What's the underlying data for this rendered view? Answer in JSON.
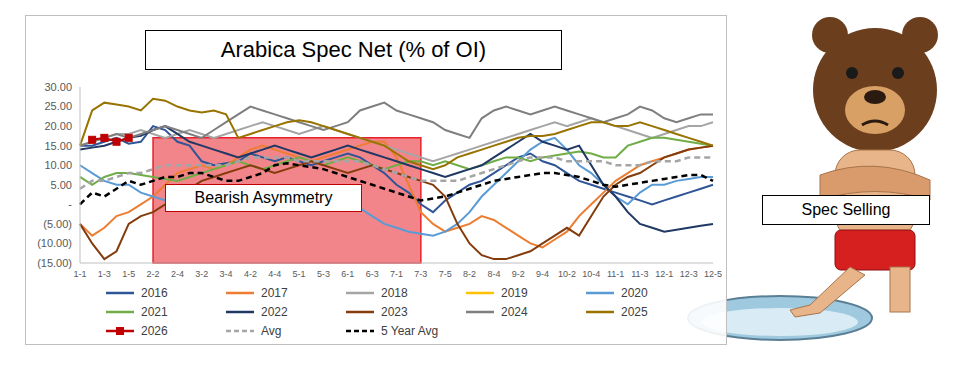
{
  "chart_data": {
    "type": "line",
    "title": "Arabica Spec Net (% of OI)",
    "categories": [
      "1-1",
      null,
      "1-3",
      null,
      "1-5",
      null,
      "2-2",
      null,
      "2-4",
      null,
      "3-2",
      null,
      "3-4",
      null,
      "4-2",
      null,
      "4-4",
      null,
      "5-1",
      null,
      "5-3",
      null,
      "6-1",
      null,
      "6-3",
      null,
      "7-1",
      null,
      "7-3",
      null,
      "7-5",
      null,
      "8-2",
      null,
      "8-4",
      null,
      "9-2",
      null,
      "9-4",
      null,
      "10-2",
      null,
      "10-4",
      null,
      "11-1",
      null,
      "11-3",
      null,
      "12-1",
      null,
      "12-3",
      null,
      "12-5"
    ],
    "ylim": [
      -15,
      30
    ],
    "yticks": [
      {
        "value": -15,
        "label": "(15.00)"
      },
      {
        "value": -10,
        "label": "(10.00)"
      },
      {
        "value": -5,
        "label": "(5.00)"
      },
      {
        "value": 0,
        "label": "-"
      },
      {
        "value": 5,
        "label": "5.00"
      },
      {
        "value": 10,
        "label": "10.00"
      },
      {
        "value": 15,
        "label": "15.00"
      },
      {
        "value": 20,
        "label": "20.00"
      },
      {
        "value": 25,
        "label": "25.00"
      },
      {
        "value": 30,
        "label": "30.00"
      }
    ],
    "grid": false,
    "series": [
      {
        "name": "2016",
        "color": "#2f5597",
        "values": [
          15,
          15,
          16,
          17,
          15.5,
          16,
          20,
          19,
          16,
          15,
          11,
          10,
          10.5,
          11,
          13,
          12,
          11,
          12,
          11,
          10,
          11,
          12,
          13,
          12,
          10,
          8,
          5,
          3,
          0,
          -2,
          1,
          3,
          5,
          6,
          8,
          10,
          12,
          13,
          11,
          10,
          8,
          6,
          5,
          4,
          3,
          2,
          1,
          0,
          1,
          2,
          3,
          4,
          5
        ]
      },
      {
        "name": "2017",
        "color": "#ed7d31",
        "values": [
          -5,
          -8,
          -6,
          -3,
          -2,
          0,
          2,
          5,
          8,
          9,
          10,
          9,
          10,
          12,
          14,
          15,
          14,
          13,
          12,
          11,
          12,
          13,
          14,
          15,
          16,
          16,
          12,
          5,
          -2,
          -5,
          -7,
          -6,
          -5,
          -3,
          -4,
          -6,
          -8,
          -10,
          -11,
          -9,
          -7,
          -3,
          0,
          3,
          6,
          8,
          10,
          11,
          12,
          13,
          14,
          14.5,
          15
        ]
      },
      {
        "name": "2018",
        "color": "#a5a5a5",
        "values": [
          15,
          16,
          17,
          18,
          18,
          19,
          18,
          17,
          18,
          19,
          18,
          17,
          18,
          19,
          20,
          21,
          20,
          19,
          18,
          19,
          20,
          19,
          18,
          17,
          16,
          15,
          14,
          13,
          12,
          11,
          12,
          13,
          14,
          15,
          16,
          17,
          18,
          19,
          20,
          21,
          20,
          21,
          22,
          21,
          20,
          19,
          18,
          17,
          18,
          19,
          20,
          20,
          21
        ]
      },
      {
        "name": "2019",
        "color": "#ffc000",
        "values": [
          null,
          null,
          null,
          null,
          null,
          null,
          null,
          null,
          null,
          null,
          null,
          null,
          null,
          null,
          null,
          null,
          null,
          null,
          null,
          null,
          null,
          null,
          null,
          null,
          null,
          null,
          null,
          null,
          null,
          null,
          null,
          null,
          null,
          null,
          null,
          null,
          null,
          null,
          null,
          null,
          null,
          null,
          null,
          null,
          null,
          null,
          null,
          null,
          null,
          null,
          null,
          null,
          null
        ]
      },
      {
        "name": "2020",
        "color": "#5b9bd5",
        "values": [
          10,
          8,
          6,
          5,
          5,
          3,
          2,
          1,
          0,
          -1,
          0,
          1,
          2,
          1,
          0,
          -1,
          0,
          1,
          2,
          3,
          2,
          1,
          0,
          -1,
          -3,
          -5,
          -6,
          -7,
          -7.5,
          -8,
          -7,
          -5,
          -2,
          2,
          5,
          8,
          11,
          14,
          16,
          17,
          14,
          10,
          8,
          5,
          2,
          0,
          3,
          5,
          5,
          6,
          6.5,
          7,
          7
        ]
      },
      {
        "name": "2021",
        "color": "#70ad47",
        "values": [
          7,
          5,
          7,
          8,
          8,
          7.5,
          7,
          6.5,
          6,
          7,
          8,
          9,
          10,
          11,
          10,
          9,
          10,
          11,
          12,
          11,
          10,
          11,
          12,
          11,
          10,
          9,
          10,
          11,
          11,
          10,
          11,
          10,
          9,
          10,
          11,
          12,
          12,
          11,
          12,
          12.5,
          13,
          13.5,
          13,
          12,
          12,
          15,
          16,
          17,
          17,
          16.5,
          16,
          15.5,
          15
        ]
      },
      {
        "name": "2022",
        "color": "#1f3864",
        "values": [
          14,
          14.5,
          15,
          16,
          17,
          17.5,
          19,
          20,
          18,
          16,
          15,
          14,
          13,
          12,
          13,
          14,
          15,
          14,
          13,
          12,
          13,
          14,
          15,
          14,
          13,
          12,
          11,
          10,
          9,
          8,
          7,
          8,
          9,
          10,
          12,
          14,
          16,
          18,
          16,
          15,
          14,
          15,
          10,
          5,
          2,
          -2,
          -5,
          -6,
          -7,
          -6.5,
          -6,
          -5.5,
          -5
        ]
      },
      {
        "name": "2023",
        "color": "#843c0c",
        "values": [
          -5,
          -10,
          -14,
          -12,
          -5,
          -3,
          -2,
          0,
          2,
          4,
          6,
          7,
          8,
          9,
          10,
          9,
          8,
          9,
          10,
          11,
          10,
          9,
          8,
          9,
          10,
          9,
          8,
          7,
          6,
          5,
          2,
          -5,
          -10,
          -13,
          -14,
          -14,
          -13,
          -12,
          -10,
          -8,
          -6,
          -8,
          -3,
          2,
          5,
          7,
          8,
          10,
          12,
          13,
          14,
          14.5,
          15
        ]
      },
      {
        "name": "2024",
        "color": "#7f7f7f",
        "values": [
          15,
          16,
          17,
          18,
          17,
          18,
          19,
          20,
          19,
          18,
          17,
          19,
          21,
          23,
          25,
          24,
          23,
          22,
          21,
          20,
          19,
          20,
          21,
          24,
          25,
          26,
          24,
          23,
          22,
          21,
          19,
          18,
          17,
          22,
          24,
          25,
          24,
          23,
          24,
          25,
          24,
          23,
          22,
          21,
          22,
          23,
          25,
          24,
          22,
          21,
          22,
          23,
          23
        ]
      },
      {
        "name": "2025",
        "color": "#997300",
        "values": [
          15,
          24,
          26,
          25.5,
          25,
          24,
          27,
          26.5,
          25,
          24,
          23.5,
          24,
          23,
          17,
          18,
          19,
          20,
          21,
          21.5,
          21,
          20,
          19,
          18,
          17,
          16,
          15,
          13,
          11,
          10,
          9,
          10,
          12,
          13,
          14,
          15,
          16,
          17,
          17.5,
          17.5,
          18,
          19,
          20,
          21,
          21,
          20,
          20,
          21,
          20,
          19,
          18,
          17,
          16,
          15
        ]
      },
      {
        "name": "2026",
        "color": "#c00000",
        "marker": "square",
        "values": [
          null,
          16.5,
          17,
          16,
          17,
          null,
          null,
          null,
          null,
          null,
          null,
          null,
          null,
          null,
          null,
          null,
          null,
          null,
          null,
          null,
          null,
          null,
          null,
          null,
          null,
          null,
          null,
          null,
          null,
          null,
          null,
          null,
          null,
          null,
          null,
          null,
          null,
          null,
          null,
          null,
          null,
          null,
          null,
          null,
          null,
          null,
          null,
          null,
          null,
          null,
          null,
          null,
          null
        ]
      },
      {
        "name": "Avg",
        "color": "#a5a5a5",
        "line_style": "dashed",
        "values": [
          4,
          6,
          6,
          7,
          8,
          8,
          9,
          10,
          10,
          10,
          10,
          10,
          10,
          11,
          12,
          12,
          12,
          12,
          11,
          11,
          11,
          11,
          11,
          11,
          10,
          9,
          8,
          7,
          6,
          6,
          6,
          6,
          7,
          8,
          9,
          10,
          11,
          12,
          12,
          12,
          11,
          11,
          11,
          11,
          10,
          10,
          10,
          11,
          11,
          11,
          12,
          12,
          12
        ]
      },
      {
        "name": "5 Year Avg",
        "color": "#000000",
        "line_style": "dashed",
        "values": [
          0,
          3,
          2,
          4,
          6,
          5,
          6,
          7,
          7,
          8,
          8,
          7,
          6,
          6,
          7,
          8,
          10,
          10.5,
          10,
          9.5,
          9,
          8,
          7,
          6,
          5,
          4,
          3,
          2,
          1,
          1.5,
          2,
          3,
          4,
          5,
          6,
          6.5,
          7,
          7.5,
          8,
          8,
          7.5,
          7,
          6,
          5,
          4.5,
          5,
          5.5,
          6,
          6.5,
          7,
          7.5,
          7.5,
          6
        ]
      }
    ],
    "annotations": [
      {
        "text": "Bearish Asymmetry",
        "x_start": "2-2",
        "x_end": "7-3",
        "y_range": [
          -15,
          17
        ]
      },
      {
        "text": "Spec Selling"
      }
    ]
  }
}
